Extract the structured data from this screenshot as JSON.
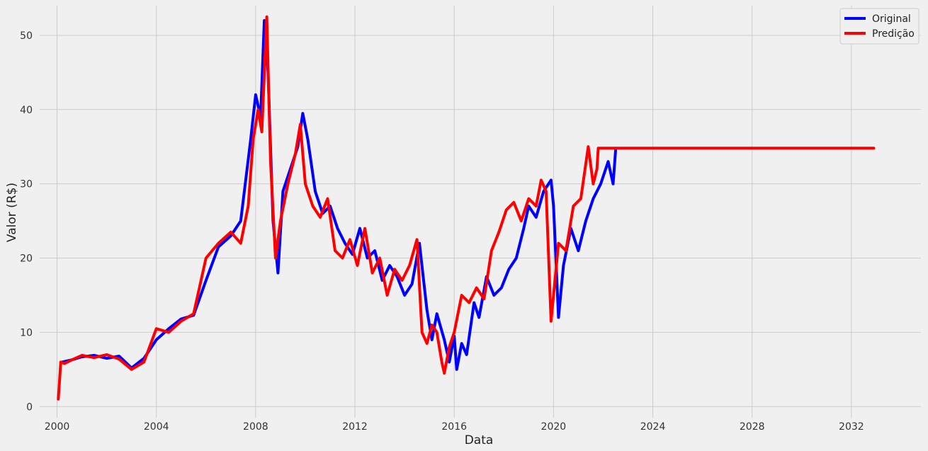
{
  "chart_data": {
    "type": "line",
    "title": "",
    "xlabel": "Data",
    "ylabel": "Valor (R$)",
    "xlim": [
      1999.3,
      2034.8
    ],
    "ylim": [
      -1.5,
      54
    ],
    "x_ticks": [
      2000,
      2004,
      2008,
      2012,
      2016,
      2020,
      2024,
      2028,
      2032
    ],
    "x_tick_labels": [
      "2000",
      "2004",
      "2008",
      "2012",
      "2016",
      "2020",
      "2024",
      "2028",
      "2032"
    ],
    "y_ticks": [
      0,
      10,
      20,
      30,
      40,
      50
    ],
    "y_tick_labels": [
      "0",
      "10",
      "20",
      "30",
      "40",
      "50"
    ],
    "grid": true,
    "legend_position": "top-right",
    "series": [
      {
        "name": "Original",
        "color": "#0000ff",
        "x": [
          2000.2,
          2000.6,
          2001.0,
          2001.5,
          2002.0,
          2002.5,
          2003.0,
          2003.5,
          2004.0,
          2004.5,
          2005.0,
          2005.5,
          2006.0,
          2006.5,
          2007.0,
          2007.4,
          2007.8,
          2008.0,
          2008.2,
          2008.35,
          2008.5,
          2008.7,
          2008.9,
          2009.1,
          2009.4,
          2009.7,
          2009.9,
          2010.1,
          2010.4,
          2010.7,
          2011.0,
          2011.3,
          2011.6,
          2011.9,
          2012.2,
          2012.5,
          2012.8,
          2013.1,
          2013.4,
          2013.7,
          2014.0,
          2014.3,
          2014.6,
          2014.9,
          2015.1,
          2015.3,
          2015.6,
          2015.8,
          2016.0,
          2016.1,
          2016.3,
          2016.5,
          2016.8,
          2017.0,
          2017.3,
          2017.6,
          2017.9,
          2018.2,
          2018.5,
          2018.8,
          2019.0,
          2019.3,
          2019.6,
          2019.9,
          2020.0,
          2020.2,
          2020.4,
          2020.7,
          2021.0,
          2021.3,
          2021.6,
          2021.9,
          2022.2,
          2022.4,
          2022.5
        ],
        "y": [
          6.0,
          6.3,
          6.7,
          6.9,
          6.5,
          6.8,
          5.2,
          6.5,
          9.0,
          10.5,
          11.8,
          12.3,
          17.0,
          21.5,
          23.0,
          25.0,
          36.0,
          42.0,
          39.0,
          52.0,
          45.0,
          25.0,
          18.0,
          29.0,
          32.0,
          35.0,
          39.5,
          36.0,
          29.0,
          26.0,
          27.0,
          24.0,
          22.0,
          20.5,
          24.0,
          20.0,
          21.0,
          17.0,
          19.0,
          17.5,
          15.0,
          16.5,
          22.0,
          13.0,
          9.0,
          12.5,
          9.0,
          6.0,
          9.5,
          5.0,
          8.5,
          7.0,
          14.0,
          12.0,
          17.5,
          15.0,
          16.0,
          18.5,
          20.0,
          24.0,
          27.0,
          25.5,
          29.0,
          30.5,
          27.0,
          12.0,
          19.0,
          24.0,
          21.0,
          25.0,
          28.0,
          30.0,
          33.0,
          30.0,
          34.5
        ]
      },
      {
        "name": "Predição",
        "color": "#ff0000",
        "x": [
          2000.05,
          2000.15,
          2000.3,
          2000.6,
          2001.0,
          2001.5,
          2002.0,
          2002.5,
          2003.0,
          2003.5,
          2004.0,
          2004.5,
          2005.0,
          2005.5,
          2006.0,
          2006.5,
          2007.0,
          2007.4,
          2007.7,
          2007.9,
          2008.1,
          2008.25,
          2008.45,
          2008.6,
          2008.8,
          2009.0,
          2009.3,
          2009.6,
          2009.8,
          2010.0,
          2010.3,
          2010.6,
          2010.9,
          2011.2,
          2011.5,
          2011.8,
          2012.1,
          2012.4,
          2012.7,
          2013.0,
          2013.3,
          2013.6,
          2013.9,
          2014.2,
          2014.5,
          2014.7,
          2014.9,
          2015.1,
          2015.3,
          2015.5,
          2015.6,
          2015.8,
          2016.0,
          2016.3,
          2016.6,
          2016.9,
          2017.2,
          2017.5,
          2017.8,
          2018.1,
          2018.4,
          2018.7,
          2019.0,
          2019.3,
          2019.5,
          2019.7,
          2019.9,
          2020.2,
          2020.5,
          2020.8,
          2021.1,
          2021.4,
          2021.6,
          2021.75,
          2021.8,
          2022.0,
          2032.9
        ],
        "y": [
          1.0,
          6.0,
          5.8,
          6.3,
          6.9,
          6.6,
          7.0,
          6.4,
          5.0,
          6.0,
          10.5,
          10.0,
          11.5,
          12.5,
          20.0,
          22.0,
          23.5,
          22.0,
          27.0,
          36.0,
          40.0,
          37.0,
          52.5,
          33.0,
          20.0,
          25.0,
          30.0,
          34.0,
          38.0,
          30.0,
          27.0,
          25.5,
          28.0,
          21.0,
          20.0,
          22.5,
          19.0,
          24.0,
          18.0,
          20.0,
          15.0,
          18.5,
          17.0,
          19.0,
          22.5,
          10.0,
          8.5,
          11.0,
          10.0,
          6.0,
          4.5,
          8.0,
          10.0,
          15.0,
          14.0,
          16.0,
          14.5,
          21.0,
          23.5,
          26.5,
          27.5,
          25.0,
          28.0,
          27.0,
          30.5,
          29.0,
          11.5,
          22.0,
          21.0,
          27.0,
          28.0,
          35.0,
          30.0,
          32.0,
          34.8,
          34.8,
          34.8
        ]
      }
    ]
  }
}
